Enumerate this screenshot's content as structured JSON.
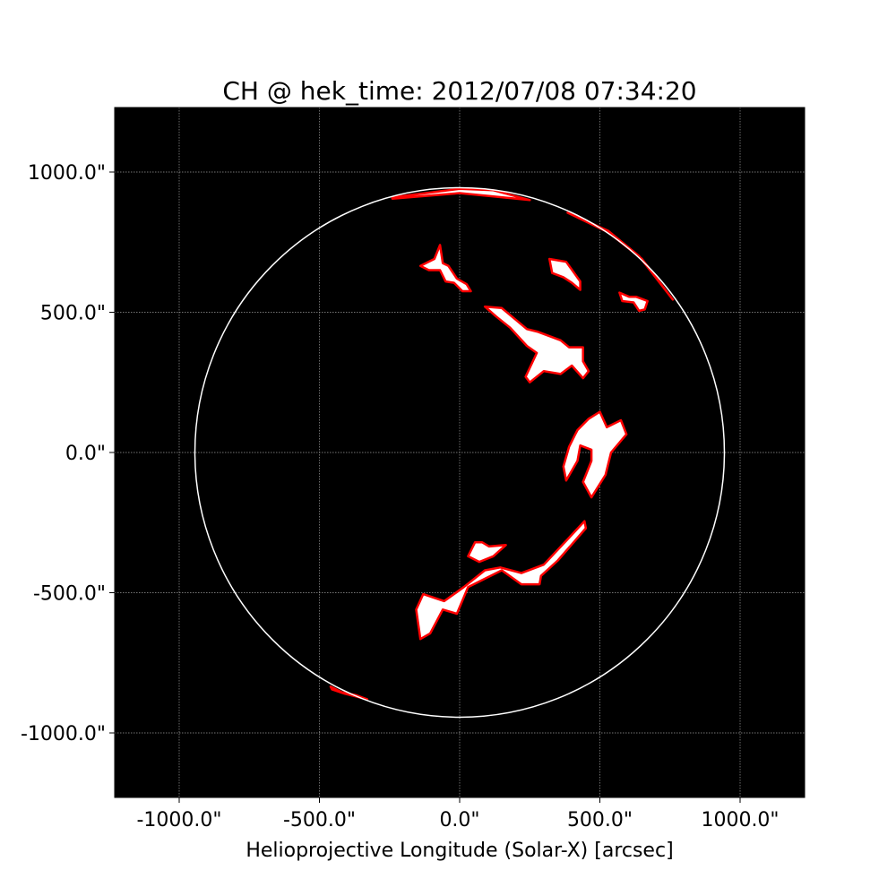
{
  "chart_data": {
    "type": "scatter",
    "title": "CH @ hek_time: 2012/07/08 07:34:20",
    "xlabel": "Helioprojective Longitude (Solar-X) [arcsec]",
    "ylabel": "",
    "xlim": [
      -1230,
      1230
    ],
    "ylim": [
      -1230,
      1230
    ],
    "x_ticks": [
      {
        "value": -1000,
        "label": "-1000.0\""
      },
      {
        "value": -500,
        "label": "-500.0\""
      },
      {
        "value": 0,
        "label": "0.0\""
      },
      {
        "value": 500,
        "label": "500.0\""
      },
      {
        "value": 1000,
        "label": "1000.0\""
      }
    ],
    "y_ticks": [
      {
        "value": 1000,
        "label": "1000.0\""
      },
      {
        "value": 500,
        "label": "500.0\""
      },
      {
        "value": 0,
        "label": "0.0\""
      },
      {
        "value": -500,
        "label": "-500.0\""
      },
      {
        "value": -1000,
        "label": "-1000.0\""
      }
    ],
    "grid": true,
    "background": "#000000",
    "solar_limb": {
      "center": [
        0,
        0
      ],
      "radius_arcsec": 944,
      "color": "#ffffff"
    },
    "region_fill": "#ffffff",
    "region_outline": "#ff0000",
    "regions": [
      {
        "name": "north-limb-strip",
        "points": [
          [
            -240,
            910
          ],
          [
            -120,
            925
          ],
          [
            0,
            940
          ],
          [
            120,
            935
          ],
          [
            250,
            900
          ],
          [
            0,
            925
          ],
          [
            -120,
            915
          ],
          [
            -240,
            905
          ]
        ]
      },
      {
        "name": "north-east-limb-strip",
        "points": [
          [
            385,
            855
          ],
          [
            530,
            790
          ],
          [
            640,
            700
          ],
          [
            760,
            545
          ],
          [
            650,
            690
          ],
          [
            530,
            785
          ]
        ]
      },
      {
        "name": "north-patch-a",
        "points": [
          [
            -140,
            665
          ],
          [
            -90,
            690
          ],
          [
            -70,
            740
          ],
          [
            -60,
            675
          ],
          [
            -40,
            665
          ],
          [
            -10,
            620
          ],
          [
            25,
            600
          ],
          [
            40,
            575
          ],
          [
            10,
            575
          ],
          [
            -20,
            605
          ],
          [
            -50,
            610
          ],
          [
            -70,
            650
          ],
          [
            -110,
            650
          ]
        ]
      },
      {
        "name": "north-patch-b",
        "points": [
          [
            320,
            690
          ],
          [
            380,
            680
          ],
          [
            430,
            610
          ],
          [
            430,
            580
          ],
          [
            400,
            605
          ],
          [
            370,
            625
          ],
          [
            330,
            640
          ]
        ]
      },
      {
        "name": "north-east-patch",
        "points": [
          [
            570,
            570
          ],
          [
            605,
            555
          ],
          [
            630,
            555
          ],
          [
            670,
            540
          ],
          [
            660,
            510
          ],
          [
            640,
            505
          ],
          [
            620,
            535
          ],
          [
            580,
            540
          ]
        ]
      },
      {
        "name": "central-ch-north",
        "points": [
          [
            90,
            520
          ],
          [
            150,
            515
          ],
          [
            240,
            440
          ],
          [
            280,
            430
          ],
          [
            360,
            400
          ],
          [
            390,
            375
          ],
          [
            440,
            375
          ],
          [
            440,
            325
          ],
          [
            460,
            290
          ],
          [
            440,
            265
          ],
          [
            400,
            310
          ],
          [
            360,
            280
          ],
          [
            300,
            290
          ],
          [
            250,
            250
          ],
          [
            235,
            270
          ],
          [
            275,
            355
          ],
          [
            240,
            380
          ],
          [
            180,
            445
          ],
          [
            130,
            485
          ]
        ]
      },
      {
        "name": "central-ch-equator",
        "points": [
          [
            460,
            120
          ],
          [
            500,
            145
          ],
          [
            525,
            90
          ],
          [
            575,
            115
          ],
          [
            595,
            65
          ],
          [
            540,
            0
          ],
          [
            520,
            -80
          ],
          [
            470,
            -160
          ],
          [
            440,
            -105
          ],
          [
            470,
            -30
          ],
          [
            470,
            10
          ],
          [
            430,
            25
          ],
          [
            420,
            -30
          ],
          [
            380,
            -100
          ],
          [
            370,
            -50
          ],
          [
            390,
            20
          ],
          [
            410,
            60
          ],
          [
            420,
            80
          ]
        ]
      },
      {
        "name": "south-patch-small",
        "points": [
          [
            30,
            -370
          ],
          [
            70,
            -390
          ],
          [
            120,
            -370
          ],
          [
            165,
            -330
          ],
          [
            105,
            -335
          ],
          [
            80,
            -320
          ],
          [
            55,
            -320
          ]
        ]
      },
      {
        "name": "south-ch-long",
        "points": [
          [
            -140,
            -665
          ],
          [
            -105,
            -645
          ],
          [
            -60,
            -560
          ],
          [
            -10,
            -575
          ],
          [
            30,
            -480
          ],
          [
            150,
            -420
          ],
          [
            220,
            -470
          ],
          [
            285,
            -470
          ],
          [
            290,
            -440
          ],
          [
            350,
            -385
          ],
          [
            450,
            -270
          ],
          [
            445,
            -245
          ],
          [
            375,
            -320
          ],
          [
            300,
            -400
          ],
          [
            220,
            -430
          ],
          [
            145,
            -410
          ],
          [
            90,
            -420
          ],
          [
            15,
            -480
          ],
          [
            -55,
            -530
          ],
          [
            -85,
            -520
          ],
          [
            -130,
            -505
          ],
          [
            -155,
            -560
          ]
        ]
      },
      {
        "name": "south-west-limb-strip",
        "points": [
          [
            -460,
            -835
          ],
          [
            -420,
            -855
          ],
          [
            -370,
            -865
          ],
          [
            -330,
            -880
          ],
          [
            -410,
            -860
          ],
          [
            -455,
            -845
          ]
        ]
      }
    ]
  }
}
